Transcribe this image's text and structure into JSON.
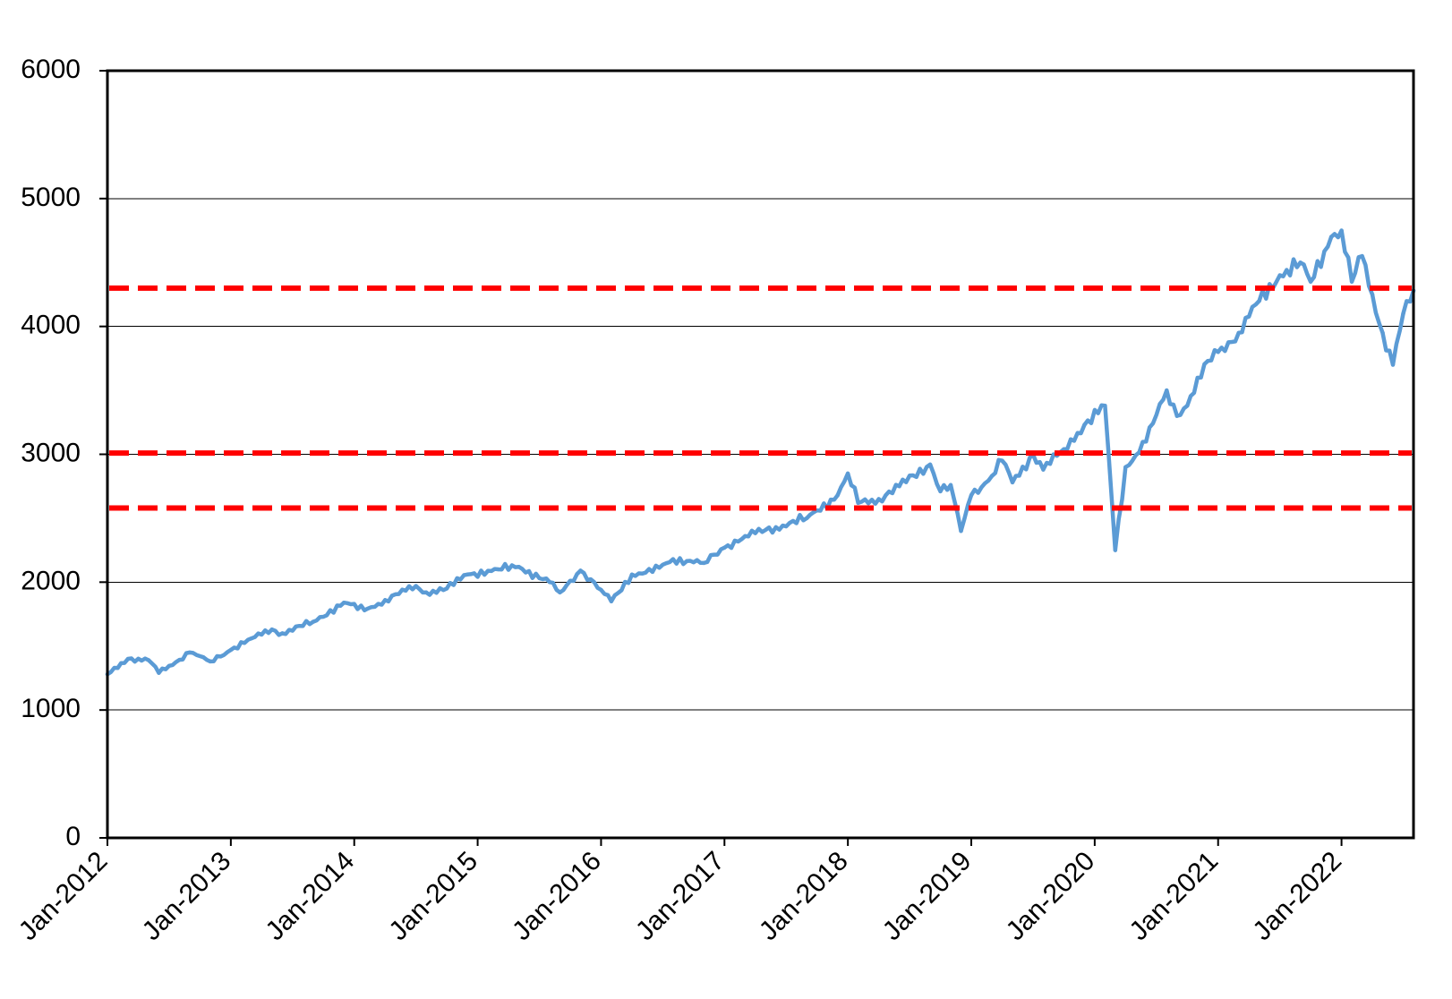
{
  "chart_data": {
    "type": "line",
    "title": "",
    "xlabel": "",
    "ylabel": "",
    "ylim": [
      0,
      6000
    ],
    "xlim": [
      "2012-01",
      "2022-08"
    ],
    "grid": "horizontal",
    "legend": "none",
    "y_ticks": [
      "0",
      "1000",
      "2000",
      "3000",
      "4000",
      "5000",
      "6000"
    ],
    "x_ticks": [
      "Jan-2012",
      "Jan-2013",
      "Jan-2014",
      "Jan-2015",
      "Jan-2016",
      "Jan-2017",
      "Jan-2018",
      "Jan-2019",
      "Jan-2020",
      "Jan-2021",
      "Jan-2022"
    ],
    "series": [
      {
        "color": "#5b9bd5",
        "x": [
          "2012-01",
          "2012-03",
          "2012-05",
          "2012-06",
          "2012-09",
          "2012-11",
          "2013-01",
          "2013-03",
          "2013-05",
          "2013-06",
          "2013-09",
          "2013-12",
          "2014-02",
          "2014-04",
          "2014-07",
          "2014-08",
          "2014-10",
          "2014-12",
          "2015-03",
          "2015-05",
          "2015-08",
          "2015-09",
          "2015-11",
          "2016-01",
          "2016-02",
          "2016-04",
          "2016-06",
          "2016-08",
          "2016-11",
          "2017-01",
          "2017-03",
          "2017-06",
          "2017-09",
          "2017-12",
          "2018-01",
          "2018-02",
          "2018-04",
          "2018-06",
          "2018-09",
          "2018-10",
          "2018-11",
          "2018-12",
          "2019-01",
          "2019-03",
          "2019-04",
          "2019-05",
          "2019-07",
          "2019-08",
          "2019-10",
          "2019-12",
          "2020-02",
          "2020-03",
          "2020-04",
          "2020-06",
          "2020-08",
          "2020-09",
          "2020-10",
          "2020-12",
          "2021-01",
          "2021-03",
          "2021-05",
          "2021-07",
          "2021-09",
          "2021-10",
          "2021-12",
          "2022-01",
          "2022-02",
          "2022-03",
          "2022-04",
          "2022-05",
          "2022-06",
          "2022-07",
          "2022-08"
        ],
        "y": [
          1280,
          1400,
          1390,
          1290,
          1450,
          1380,
          1470,
          1560,
          1630,
          1600,
          1690,
          1840,
          1780,
          1860,
          1970,
          1920,
          1950,
          2060,
          2100,
          2120,
          2000,
          1920,
          2090,
          1940,
          1850,
          2060,
          2080,
          2180,
          2150,
          2270,
          2360,
          2430,
          2500,
          2680,
          2850,
          2620,
          2650,
          2750,
          2920,
          2710,
          2760,
          2400,
          2680,
          2830,
          2950,
          2780,
          3000,
          2880,
          3040,
          3230,
          3380,
          2250,
          2900,
          3100,
          3500,
          3300,
          3380,
          3730,
          3800,
          3950,
          4200,
          4400,
          4500,
          4350,
          4700,
          4750,
          4350,
          4550,
          4250,
          3950,
          3700,
          4100,
          4280
        ]
      }
    ],
    "reference_lines": [
      {
        "y": 4300,
        "color": "#ff0000",
        "style": "dashed"
      },
      {
        "y": 3010,
        "color": "#ff0000",
        "style": "dashed"
      },
      {
        "y": 2580,
        "color": "#ff0000",
        "style": "dashed"
      }
    ]
  }
}
